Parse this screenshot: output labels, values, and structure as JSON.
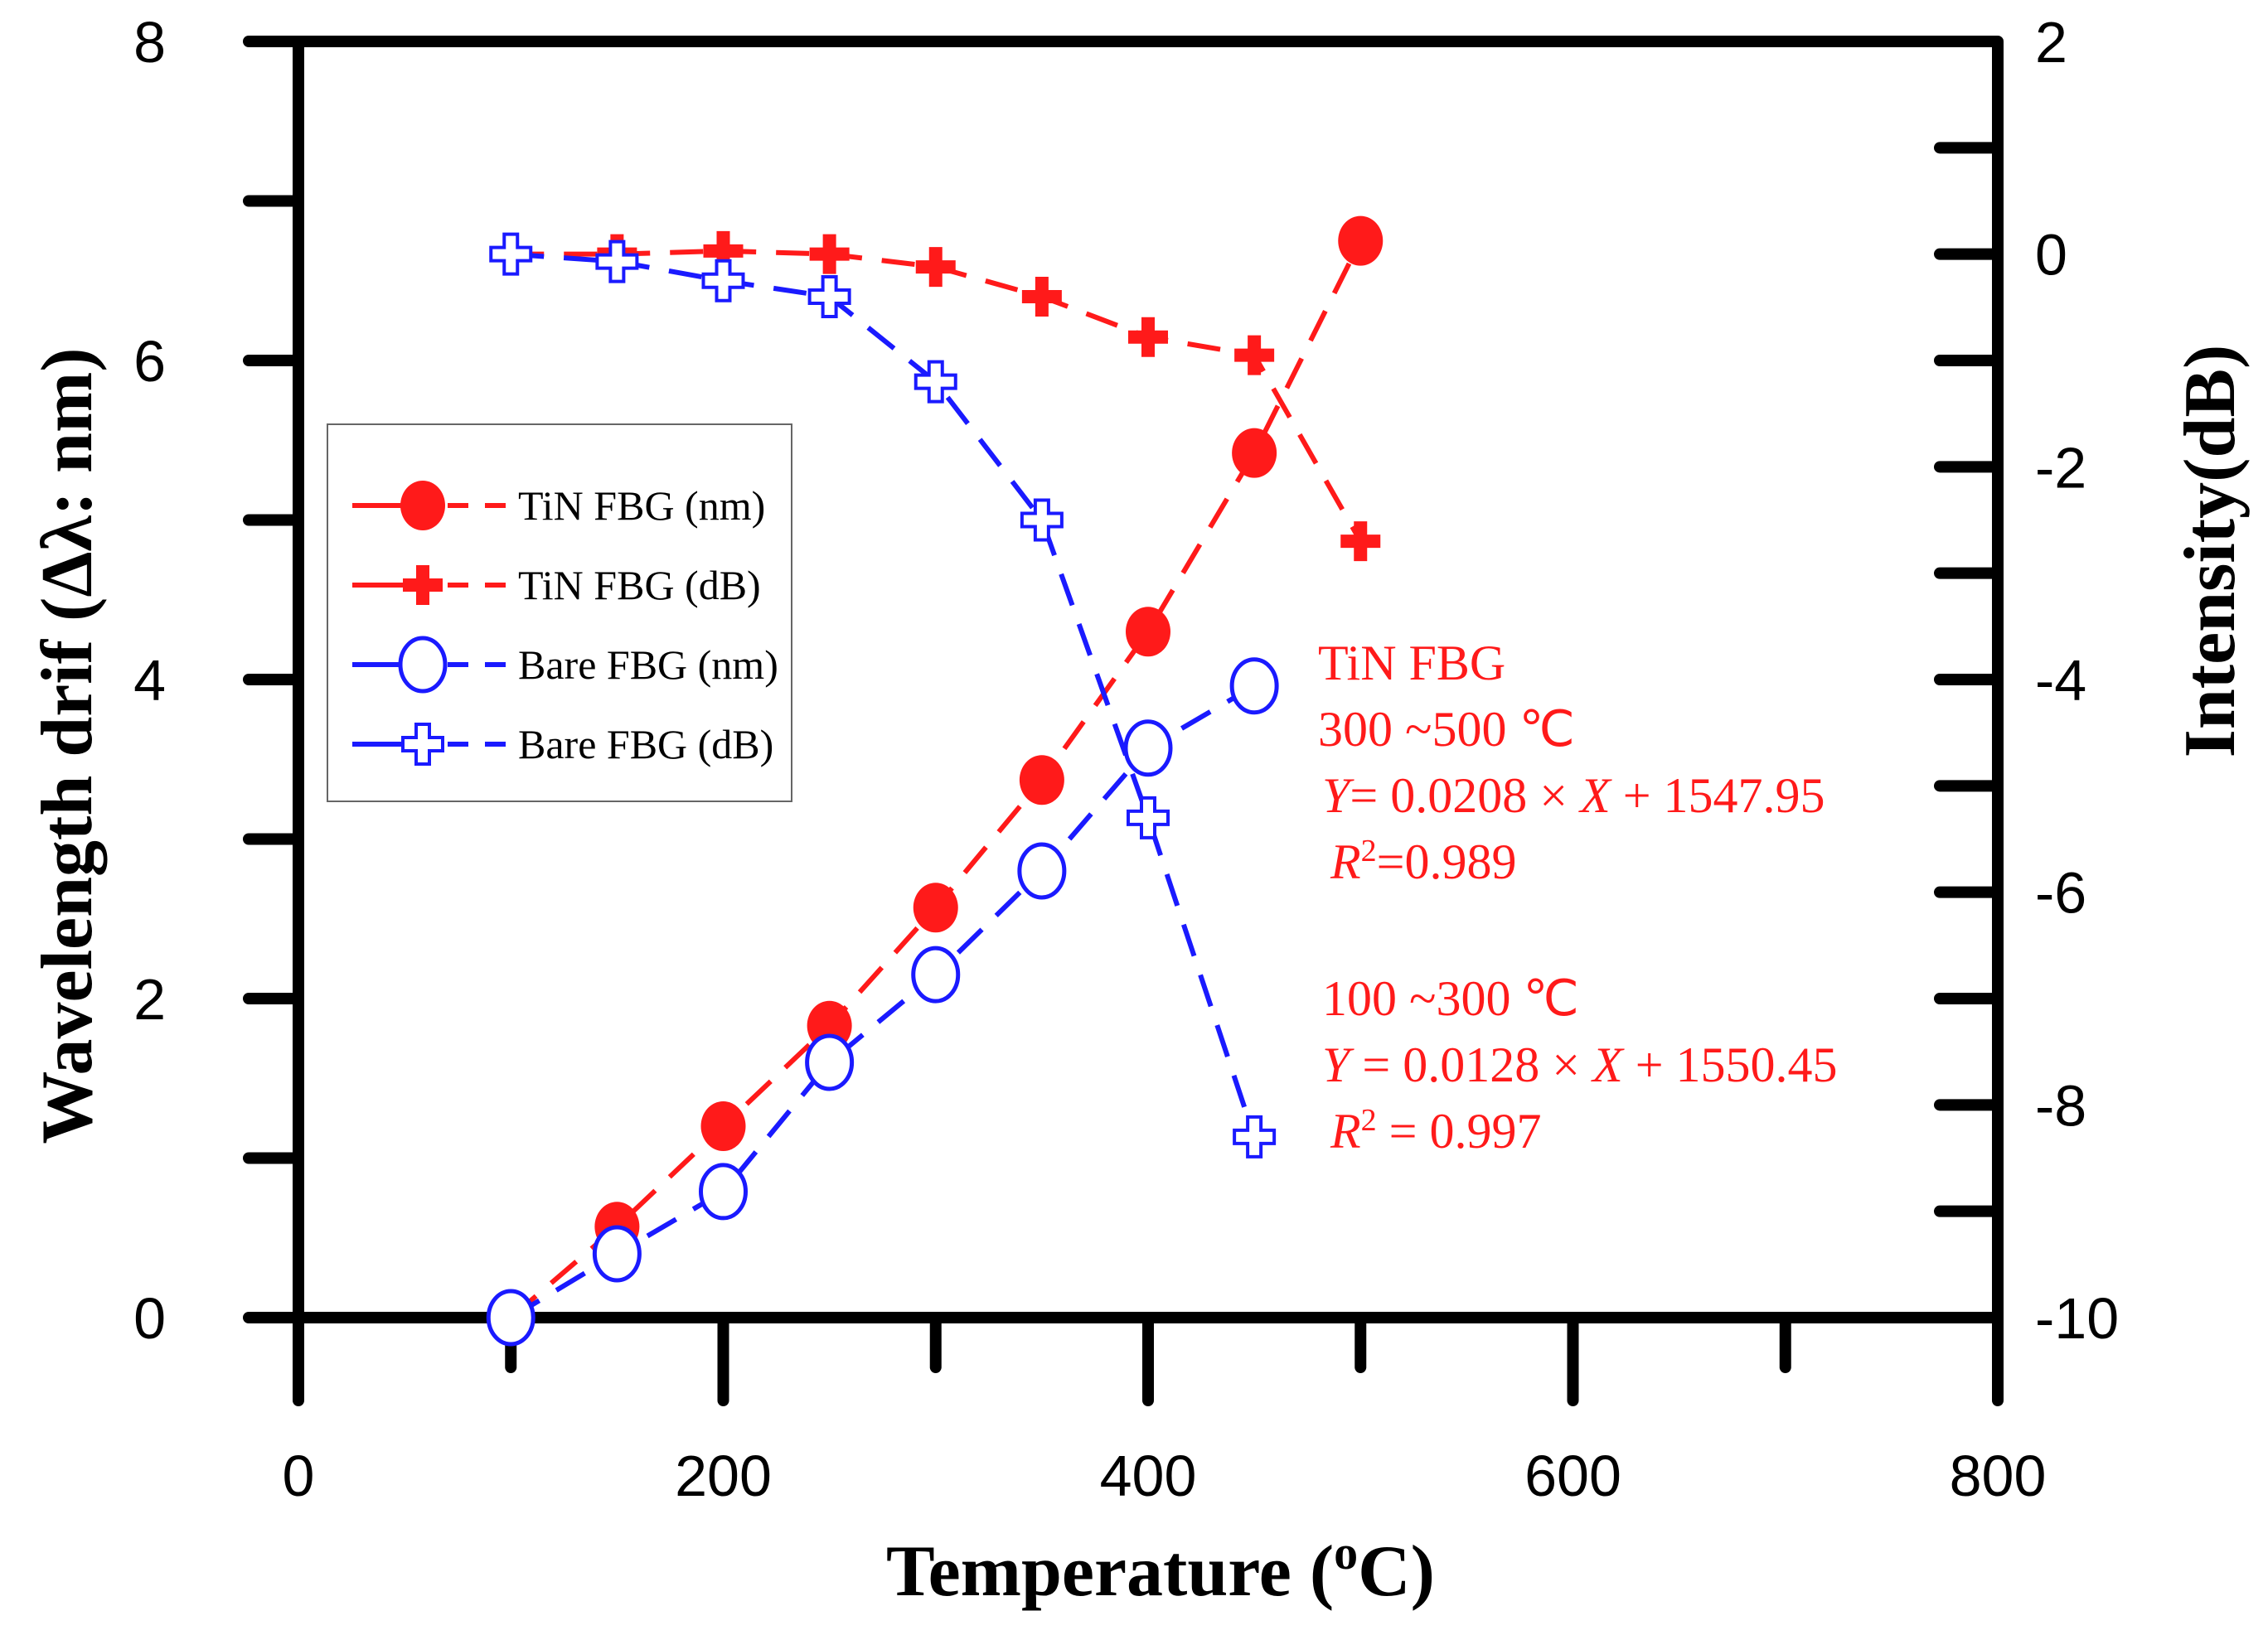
{
  "chart_data": {
    "type": "line",
    "x": [
      100,
      150,
      200,
      250,
      300,
      350,
      400,
      450,
      500
    ],
    "xlabel": "Temperature (oC)",
    "xlabel_parts": {
      "pre": "Temperature (",
      "sup": "o",
      "post": "C)"
    },
    "ylabel_left": "Wavelength drif (Δλ: nm)",
    "ylabel_right": "Intensity(dB)",
    "xlim": [
      0,
      800
    ],
    "ylim_left": [
      0,
      8
    ],
    "ylim_right": [
      -10,
      2
    ],
    "xticks": [
      "0",
      "200",
      "400",
      "600",
      "800"
    ],
    "yticks_left": [
      "0",
      "2",
      "4",
      "6",
      "8"
    ],
    "yticks_right": [
      "-10",
      "-8",
      "-6",
      "-4",
      "-2",
      "0",
      "2"
    ],
    "series": [
      {
        "name": "TiN FBG (nm)",
        "axis": "left",
        "color": "#ff1a1a",
        "marker": "filled-circle",
        "x": [
          100,
          150,
          200,
          250,
          300,
          350,
          400,
          450,
          500
        ],
        "values": [
          0,
          0.57,
          1.2,
          1.83,
          2.57,
          3.37,
          4.3,
          5.42,
          6.75
        ]
      },
      {
        "name": "TiN FBG (dB)",
        "axis": "right",
        "color": "#ff1a1a",
        "marker": "plus",
        "x": [
          100,
          150,
          200,
          250,
          300,
          350,
          400,
          450,
          500
        ],
        "values": [
          0,
          0,
          0.03,
          0,
          -0.12,
          -0.4,
          -0.78,
          -0.95,
          -2.7
        ]
      },
      {
        "name": "Bare FBG (nm)",
        "axis": "left",
        "color": "#1a1aff",
        "marker": "open-circle",
        "x": [
          100,
          150,
          200,
          250,
          300,
          350,
          400,
          450
        ],
        "values": [
          0,
          0.4,
          0.79,
          1.6,
          2.15,
          2.8,
          3.57,
          3.96
        ]
      },
      {
        "name": "Bare FBG (dB)",
        "axis": "right",
        "color": "#1a1aff",
        "marker": "open-plus",
        "x": [
          100,
          150,
          200,
          250,
          300,
          350,
          400,
          450
        ],
        "values": [
          0,
          -0.07,
          -0.25,
          -0.4,
          -1.2,
          -2.5,
          -5.3,
          -8.3
        ]
      }
    ],
    "legend": [
      "TiN FBG (nm)",
      "TiN FBG (dB)",
      "Bare FBG (nm)",
      "Bare FBG (dB)"
    ],
    "legend_position": "left",
    "annotations": {
      "title": "TiN FBG",
      "range1": "300 ~500 ℃",
      "eq1": {
        "y": "Y",
        "mid": "= 0.0208 × ",
        "x": "X",
        "rest": " + 1547.95"
      },
      "r1": {
        "r": "R",
        "sup": "2",
        "rest": "=0.989"
      },
      "range2": "100 ~300 ℃",
      "eq2": {
        "y": "Y",
        "mid": " = 0.0128 × ",
        "x": "X",
        "rest": " + 1550.45"
      },
      "r2": {
        "r": "R",
        "sup": "2",
        "rest": " = 0.997"
      }
    }
  }
}
